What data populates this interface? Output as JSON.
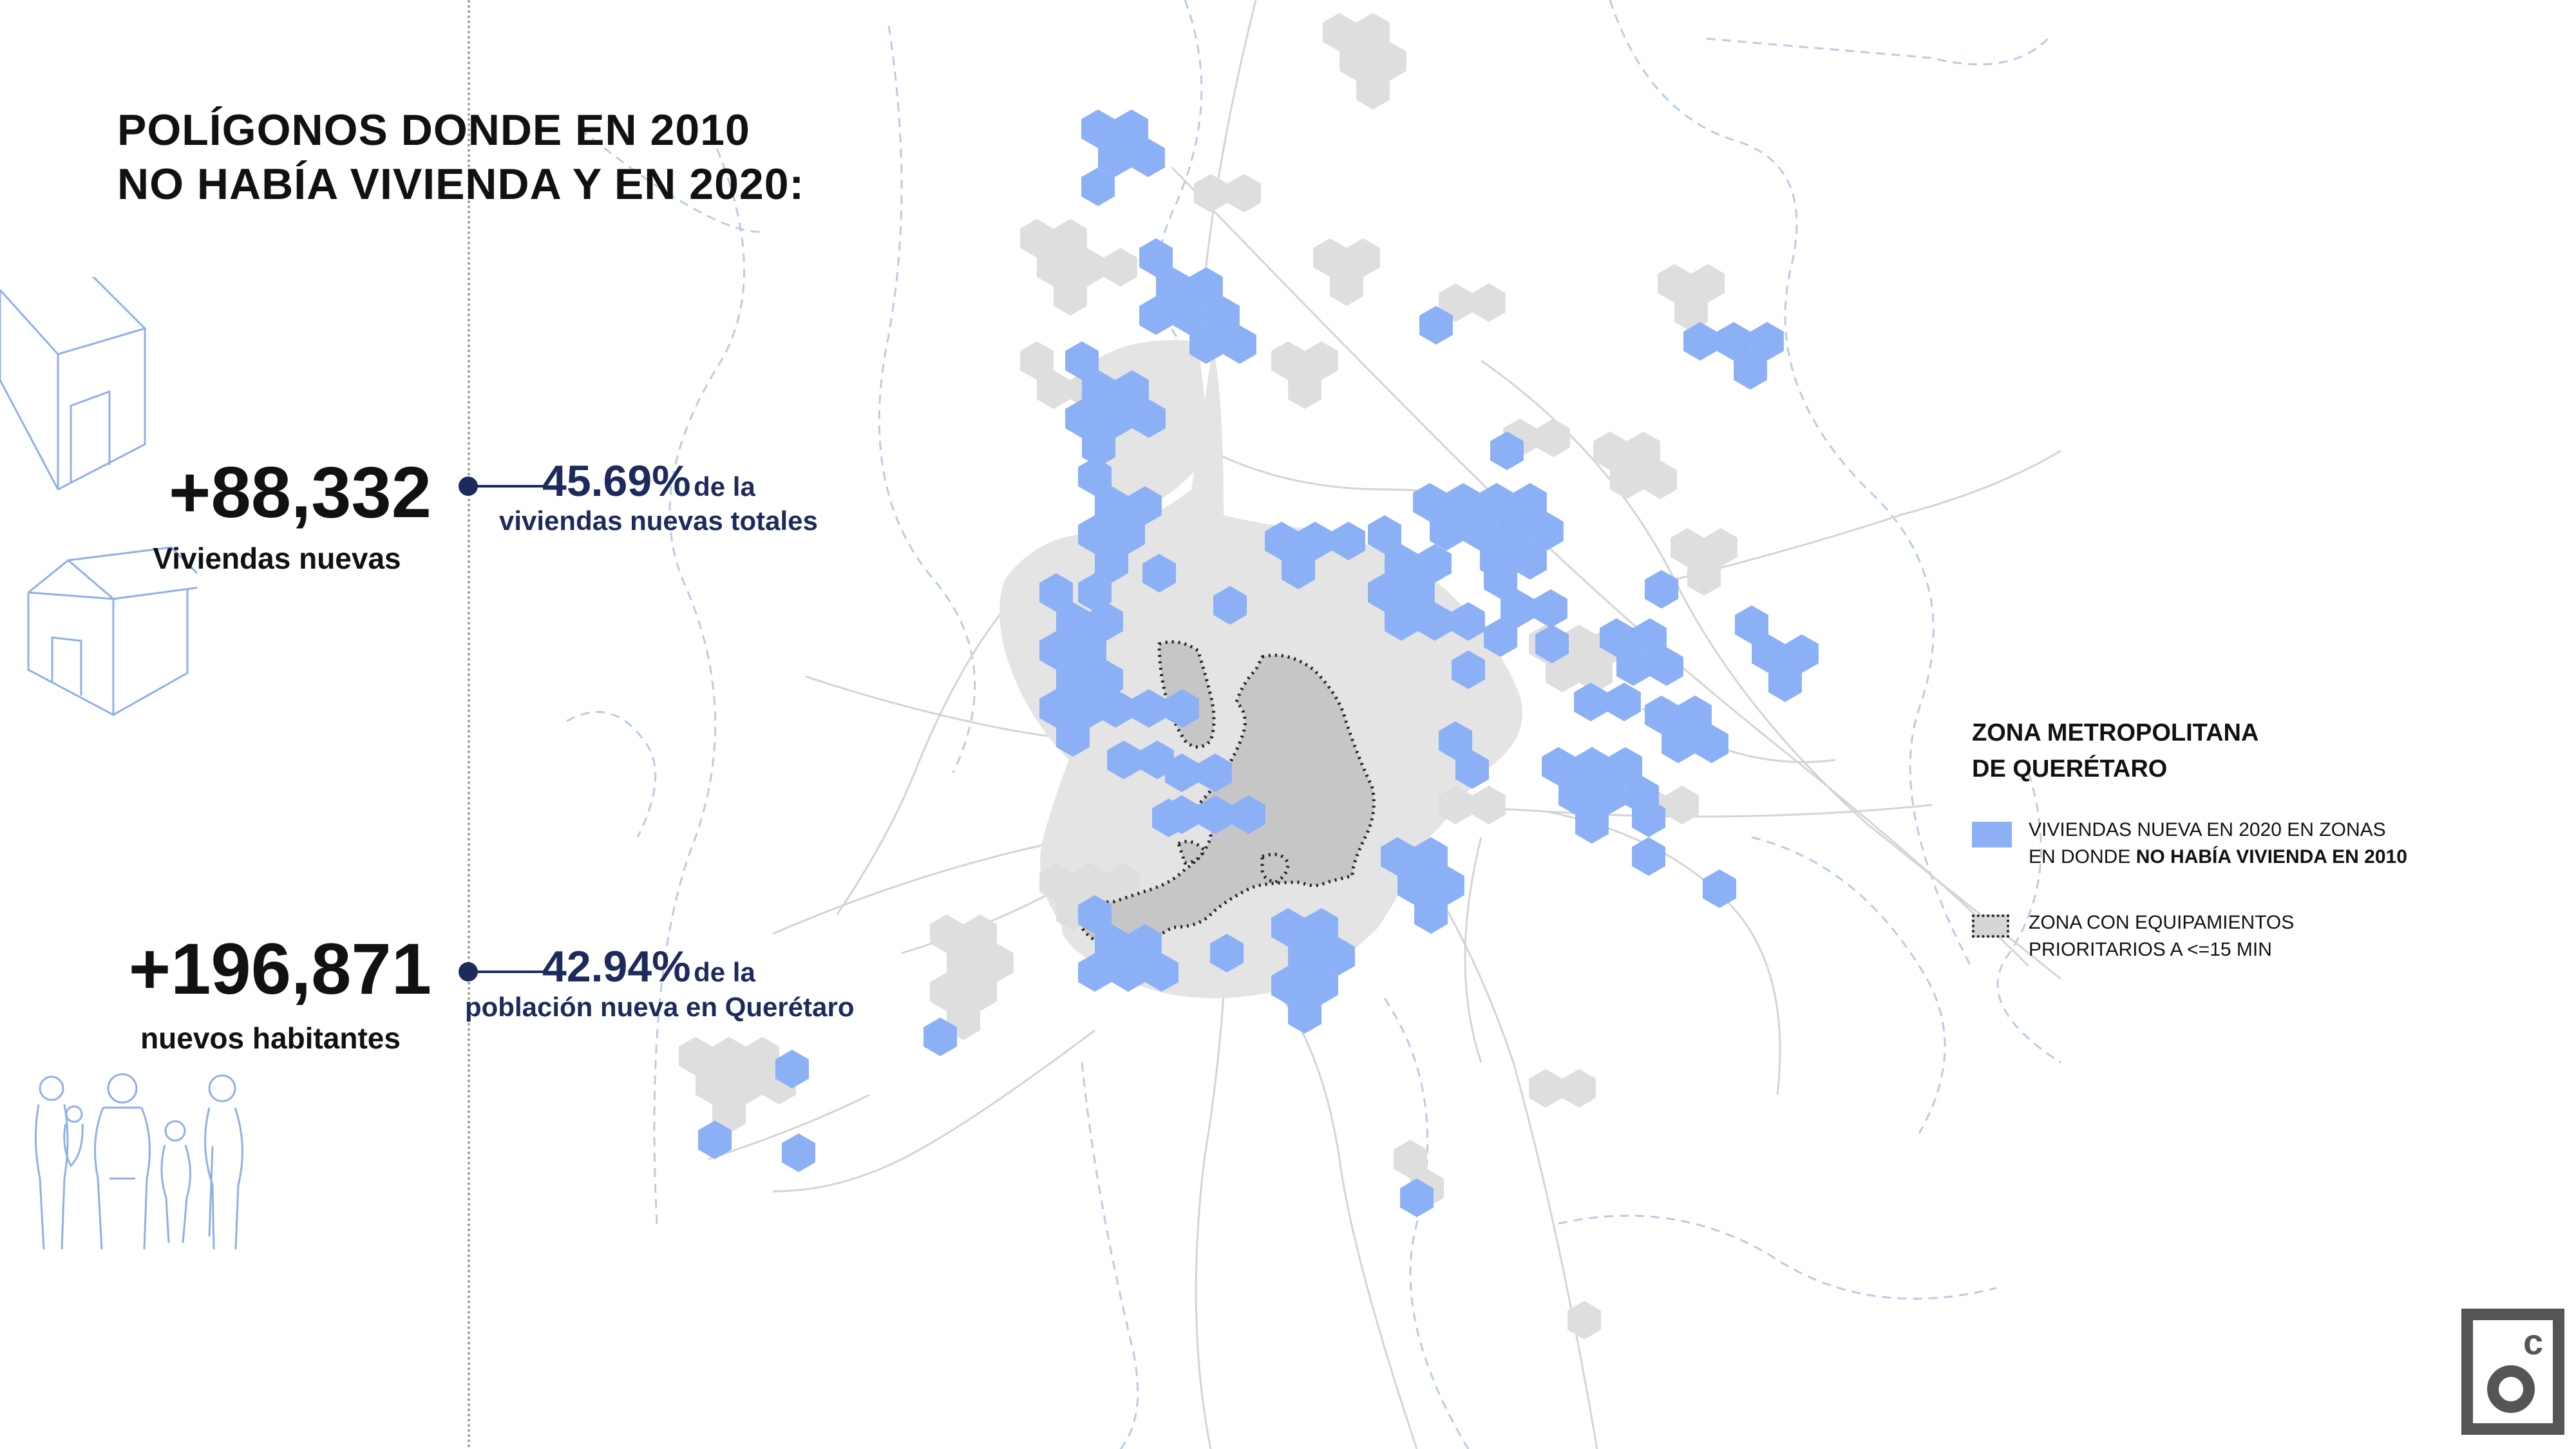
{
  "title": {
    "line1": "POLÍGONOS DONDE EN 2010",
    "line2": "NO HABÍA VIVIENDA Y EN 2020:"
  },
  "stats": {
    "housing": {
      "number": "+88,332",
      "label": "Viviendas nuevas",
      "percent": "45.69%",
      "percent_suffix": "de la",
      "percent_line2": "viviendas nuevas totales"
    },
    "population": {
      "number": "+196,871",
      "label": "nuevos habitantes",
      "percent": "42.94%",
      "percent_suffix": "de la",
      "percent_line2": "población nueva en Querétaro"
    }
  },
  "legend": {
    "title_line1": "ZONA METROPOLITANA",
    "title_line2": "DE QUERÉTARO",
    "item_new_housing": {
      "line1": "VIVIENDAS NUEVA EN 2020 EN ZONAS",
      "line2_normal": "EN DONDE ",
      "line2_bold": "NO HABÍA VIVIENDA EN 2010",
      "color": "#8cb0f5"
    },
    "item_equipment": {
      "line1": "ZONA CON EQUIPAMIENTOS",
      "line2": "PRIORITARIOS A <=15 MIN"
    }
  },
  "colors": {
    "new_housing_hex": "#8cb0f5",
    "urban_area": "#e3e3e3",
    "core_area": "#c4c4c4",
    "roads": "#d2d2d2",
    "rivers": "#b7cde6",
    "accent": "#1c2a5c"
  },
  "icons": [
    "house-outline-icon",
    "house-outline-icon",
    "family-outline-icon",
    "brand-logo-icon"
  ]
}
